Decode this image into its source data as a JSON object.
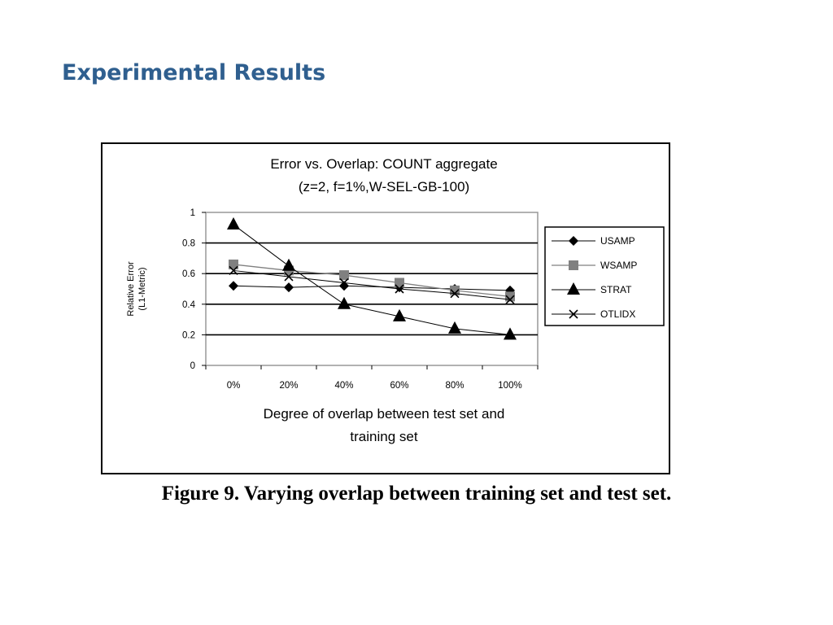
{
  "slide": {
    "title": "Experimental Results",
    "caption": "Figure 9. Varying overlap between training set and test set."
  },
  "chart_data": {
    "type": "line",
    "title": "Error vs. Overlap: COUNT aggregate",
    "subtitle": "(z=2, f=1%,W-SEL-GB-100)",
    "xlabel_lines": [
      "Degree of overlap between test set and",
      "training set"
    ],
    "ylabel_lines": [
      "Relative Error",
      "(L1-Metric)"
    ],
    "categories": [
      "0%",
      "20%",
      "40%",
      "60%",
      "80%",
      "100%"
    ],
    "ylim": [
      0,
      1
    ],
    "yticks": [
      0,
      0.2,
      0.4,
      0.6,
      0.8,
      1
    ],
    "ytick_labels": [
      "0",
      "0.2",
      "0.4",
      "0.6",
      "0.8",
      "1"
    ],
    "grid": "horizontal",
    "legend_position": "right",
    "series": [
      {
        "name": "USAMP",
        "values": [
          0.52,
          0.51,
          0.52,
          0.51,
          0.5,
          0.49
        ],
        "marker": "diamond",
        "color": "#000000",
        "width": 1
      },
      {
        "name": "WSAMP",
        "values": [
          0.66,
          0.62,
          0.59,
          0.54,
          0.49,
          0.45
        ],
        "marker": "square",
        "color": "#808080",
        "width": 1.3
      },
      {
        "name": "STRAT",
        "values": [
          0.92,
          0.65,
          0.4,
          0.32,
          0.24,
          0.2
        ],
        "marker": "triangle",
        "color": "#000000",
        "width": 1
      },
      {
        "name": "OTLIDX",
        "values": [
          0.62,
          0.58,
          0.54,
          0.5,
          0.47,
          0.43
        ],
        "marker": "x",
        "color": "#000000",
        "width": 1
      }
    ]
  }
}
